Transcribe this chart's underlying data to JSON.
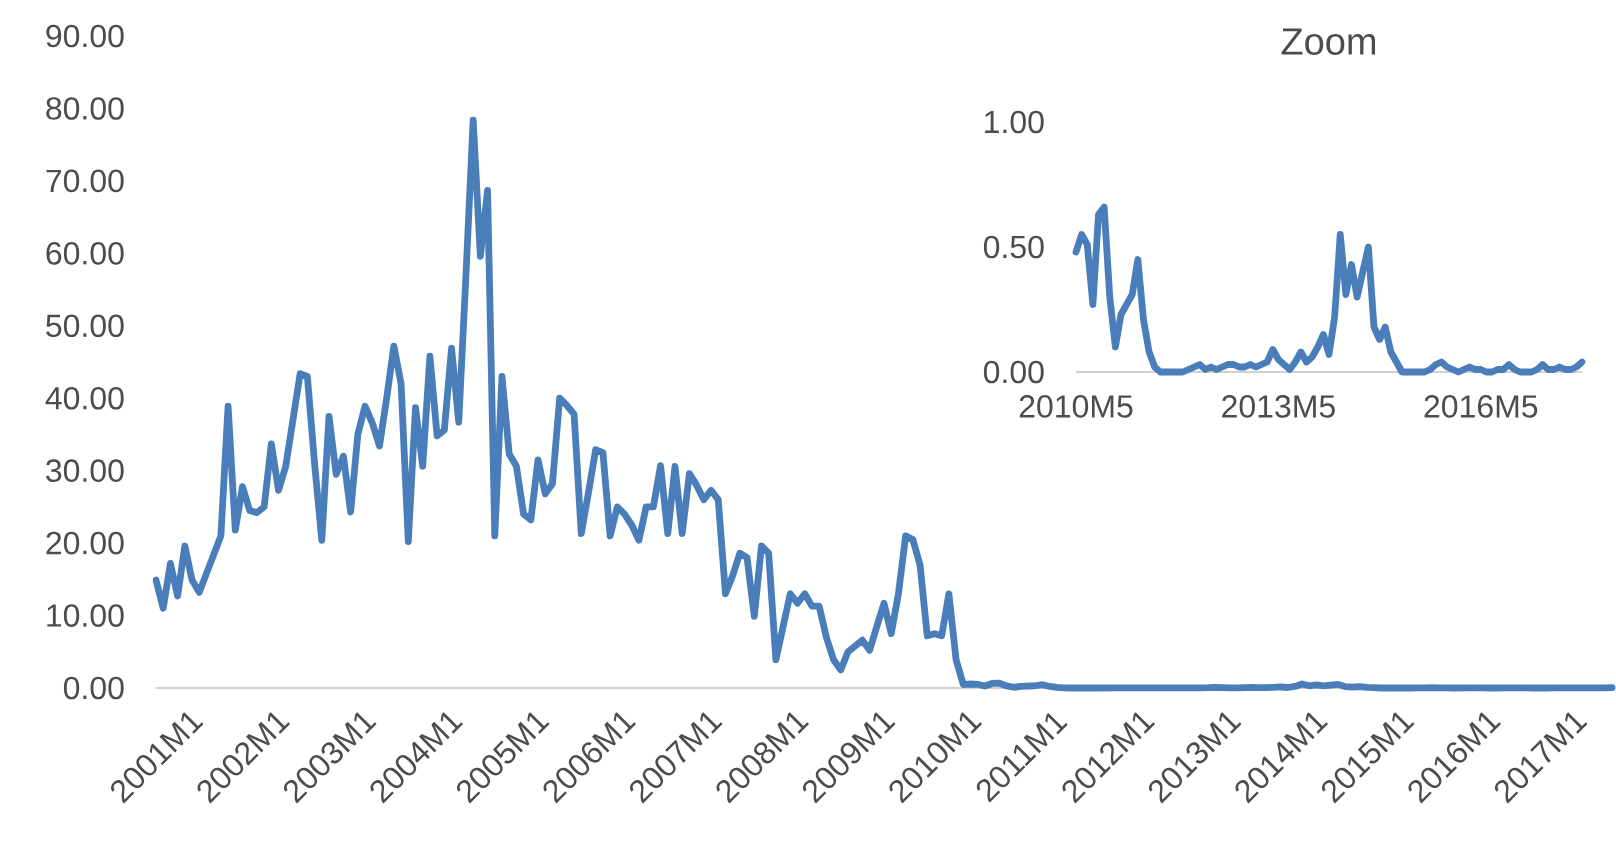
{
  "chart_data": [
    {
      "type": "line",
      "color": "#4a7ebb",
      "line_style": "solid",
      "categories": [
        "2001M1",
        null,
        null,
        null,
        null,
        null,
        null,
        null,
        null,
        null,
        null,
        null,
        "2002M1",
        null,
        null,
        null,
        null,
        null,
        null,
        null,
        null,
        null,
        null,
        null,
        "2003M1",
        null,
        null,
        null,
        null,
        null,
        null,
        null,
        null,
        null,
        null,
        null,
        "2004M1",
        null,
        null,
        null,
        null,
        null,
        null,
        null,
        null,
        null,
        null,
        null,
        "2005M1",
        null,
        null,
        null,
        null,
        null,
        null,
        null,
        null,
        null,
        null,
        null,
        "2006M1",
        null,
        null,
        null,
        null,
        null,
        null,
        null,
        null,
        null,
        null,
        null,
        "2007M1",
        null,
        null,
        null,
        null,
        null,
        null,
        null,
        null,
        null,
        null,
        null,
        "2008M1",
        null,
        null,
        null,
        null,
        null,
        null,
        null,
        null,
        null,
        null,
        null,
        "2009M1",
        null,
        null,
        null,
        null,
        null,
        null,
        null,
        null,
        null,
        null,
        null,
        "2010M1",
        null,
        null,
        null,
        null,
        null,
        null,
        null,
        null,
        null,
        null,
        null,
        "2011M1",
        null,
        null,
        null,
        null,
        null,
        null,
        null,
        null,
        null,
        null,
        null,
        "2012M1",
        null,
        null,
        null,
        null,
        null,
        null,
        null,
        null,
        null,
        null,
        null,
        "2013M1",
        null,
        null,
        null,
        null,
        null,
        null,
        null,
        null,
        null,
        null,
        null,
        "2014M1",
        null,
        null,
        null,
        null,
        null,
        null,
        null,
        null,
        null,
        null,
        null,
        "2015M1",
        null,
        null,
        null,
        null,
        null,
        null,
        null,
        null,
        null,
        null,
        null,
        "2016M1",
        null,
        null,
        null,
        null,
        null,
        null,
        null,
        null,
        null,
        null,
        null,
        "2017M1",
        null,
        null,
        null,
        null,
        null,
        null,
        null,
        null,
        null,
        null
      ],
      "values": [
        14.9,
        11,
        17.2,
        12.7,
        19.6,
        14.9,
        13.2,
        15.8,
        18.4,
        21,
        38.9,
        21.8,
        27.8,
        24.5,
        24.2,
        25,
        33.7,
        27.3,
        30.6,
        37,
        43.4,
        43,
        31,
        20.4,
        37.5,
        29.5,
        32,
        24.3,
        35,
        38.9,
        36.6,
        33.4,
        40,
        47.2,
        42,
        20.2,
        38.7,
        30.6,
        45.8,
        34.8,
        35.6,
        46.9,
        36.7,
        57,
        78.4,
        59.6,
        68.7,
        21,
        43,
        32.3,
        30.6,
        24,
        23.2,
        31.5,
        26.8,
        28.2,
        40,
        39,
        37.8,
        21.3,
        27,
        32.9,
        32.5,
        21,
        25,
        24,
        22.5,
        20.4,
        25,
        25,
        30.7,
        21.3,
        30.6,
        21.3,
        29.6,
        28,
        26,
        27.3,
        26,
        13,
        15.5,
        18.6,
        18,
        9.9,
        19.6,
        18.6,
        3.9,
        8.5,
        13,
        11.7,
        13,
        11.3,
        11.3,
        7,
        3.9,
        2.5,
        5,
        5.8,
        6.6,
        5.2,
        8.5,
        11.7,
        7.5,
        13,
        21,
        20.5,
        17,
        7.2,
        7.5,
        7.2,
        13,
        3.9,
        0.48,
        0.55,
        0.51,
        0.27,
        0.63,
        0.66,
        0.3,
        0.1,
        0.23,
        0.27,
        0.31,
        0.45,
        0.21,
        0.08,
        0.02,
        0,
        0,
        0,
        0,
        0,
        0.01,
        0.02,
        0.03,
        0.01,
        0.02,
        0.01,
        0.02,
        0.03,
        0.03,
        0.02,
        0.02,
        0.03,
        0.02,
        0.03,
        0.04,
        0.09,
        0.05,
        0.03,
        0.01,
        0.04,
        0.08,
        0.04,
        0.06,
        0.1,
        0.15,
        0.07,
        0.22,
        0.55,
        0.31,
        0.43,
        0.3,
        0.4,
        0.5,
        0.18,
        0.13,
        0.18,
        0.08,
        0.04,
        0,
        0,
        0,
        0,
        0,
        0.01,
        0.03,
        0.04,
        0.02,
        0.01,
        0,
        0.01,
        0.02,
        0.01,
        0.01,
        0,
        0,
        0.01,
        0.01,
        0.03,
        0.01,
        0,
        0,
        0,
        0.01,
        0.03,
        0.01,
        0.01,
        0.02,
        0.01,
        0.01,
        0.02,
        0.04
      ],
      "ylim": [
        0,
        90
      ],
      "yticks": [
        {
          "value": 0,
          "label": "0.00"
        },
        {
          "value": 10,
          "label": "10.00"
        },
        {
          "value": 20,
          "label": "20.00"
        },
        {
          "value": 30,
          "label": "30.00"
        },
        {
          "value": 40,
          "label": "40.00"
        },
        {
          "value": 50,
          "label": "50.00"
        },
        {
          "value": 60,
          "label": "60.00"
        },
        {
          "value": 70,
          "label": "70.00"
        },
        {
          "value": 80,
          "label": "80.00"
        },
        {
          "value": 90,
          "label": "90.00"
        }
      ]
    },
    {
      "type": "line",
      "title": "Zoom",
      "color": "#4a7ebb",
      "line_style": "solid",
      "categories": [
        "2010M5",
        null,
        null,
        null,
        null,
        null,
        null,
        null,
        null,
        null,
        null,
        null,
        null,
        null,
        null,
        null,
        null,
        null,
        null,
        null,
        null,
        null,
        null,
        null,
        null,
        null,
        null,
        null,
        null,
        null,
        null,
        null,
        null,
        null,
        null,
        null,
        "2013M5",
        null,
        null,
        null,
        null,
        null,
        null,
        null,
        null,
        null,
        null,
        null,
        null,
        null,
        null,
        null,
        null,
        null,
        null,
        null,
        null,
        null,
        null,
        null,
        null,
        null,
        null,
        null,
        null,
        null,
        null,
        null,
        null,
        null,
        null,
        null,
        "2016M5",
        null,
        null,
        null,
        null,
        null,
        null,
        null,
        null,
        null,
        null,
        null,
        null,
        null,
        null,
        null,
        null,
        null,
        null
      ],
      "values": [
        0.48,
        0.55,
        0.51,
        0.27,
        0.63,
        0.66,
        0.3,
        0.1,
        0.23,
        0.27,
        0.31,
        0.45,
        0.21,
        0.08,
        0.02,
        0,
        0,
        0,
        0,
        0,
        0.01,
        0.02,
        0.03,
        0.01,
        0.02,
        0.01,
        0.02,
        0.03,
        0.03,
        0.02,
        0.02,
        0.03,
        0.02,
        0.03,
        0.04,
        0.09,
        0.05,
        0.03,
        0.01,
        0.04,
        0.08,
        0.04,
        0.06,
        0.1,
        0.15,
        0.07,
        0.22,
        0.55,
        0.31,
        0.43,
        0.3,
        0.4,
        0.5,
        0.18,
        0.13,
        0.18,
        0.08,
        0.04,
        0,
        0,
        0,
        0,
        0,
        0.01,
        0.03,
        0.04,
        0.02,
        0.01,
        0,
        0.01,
        0.02,
        0.01,
        0.01,
        0,
        0,
        0.01,
        0.01,
        0.03,
        0.01,
        0,
        0,
        0,
        0.01,
        0.03,
        0.01,
        0.01,
        0.02,
        0.01,
        0.01,
        0.02,
        0.04
      ],
      "ylim": [
        0,
        1
      ],
      "yticks": [
        {
          "value": 0,
          "label": "0.00"
        },
        {
          "value": 0.5,
          "label": "0.50"
        },
        {
          "value": 1,
          "label": "1.00"
        }
      ]
    }
  ]
}
